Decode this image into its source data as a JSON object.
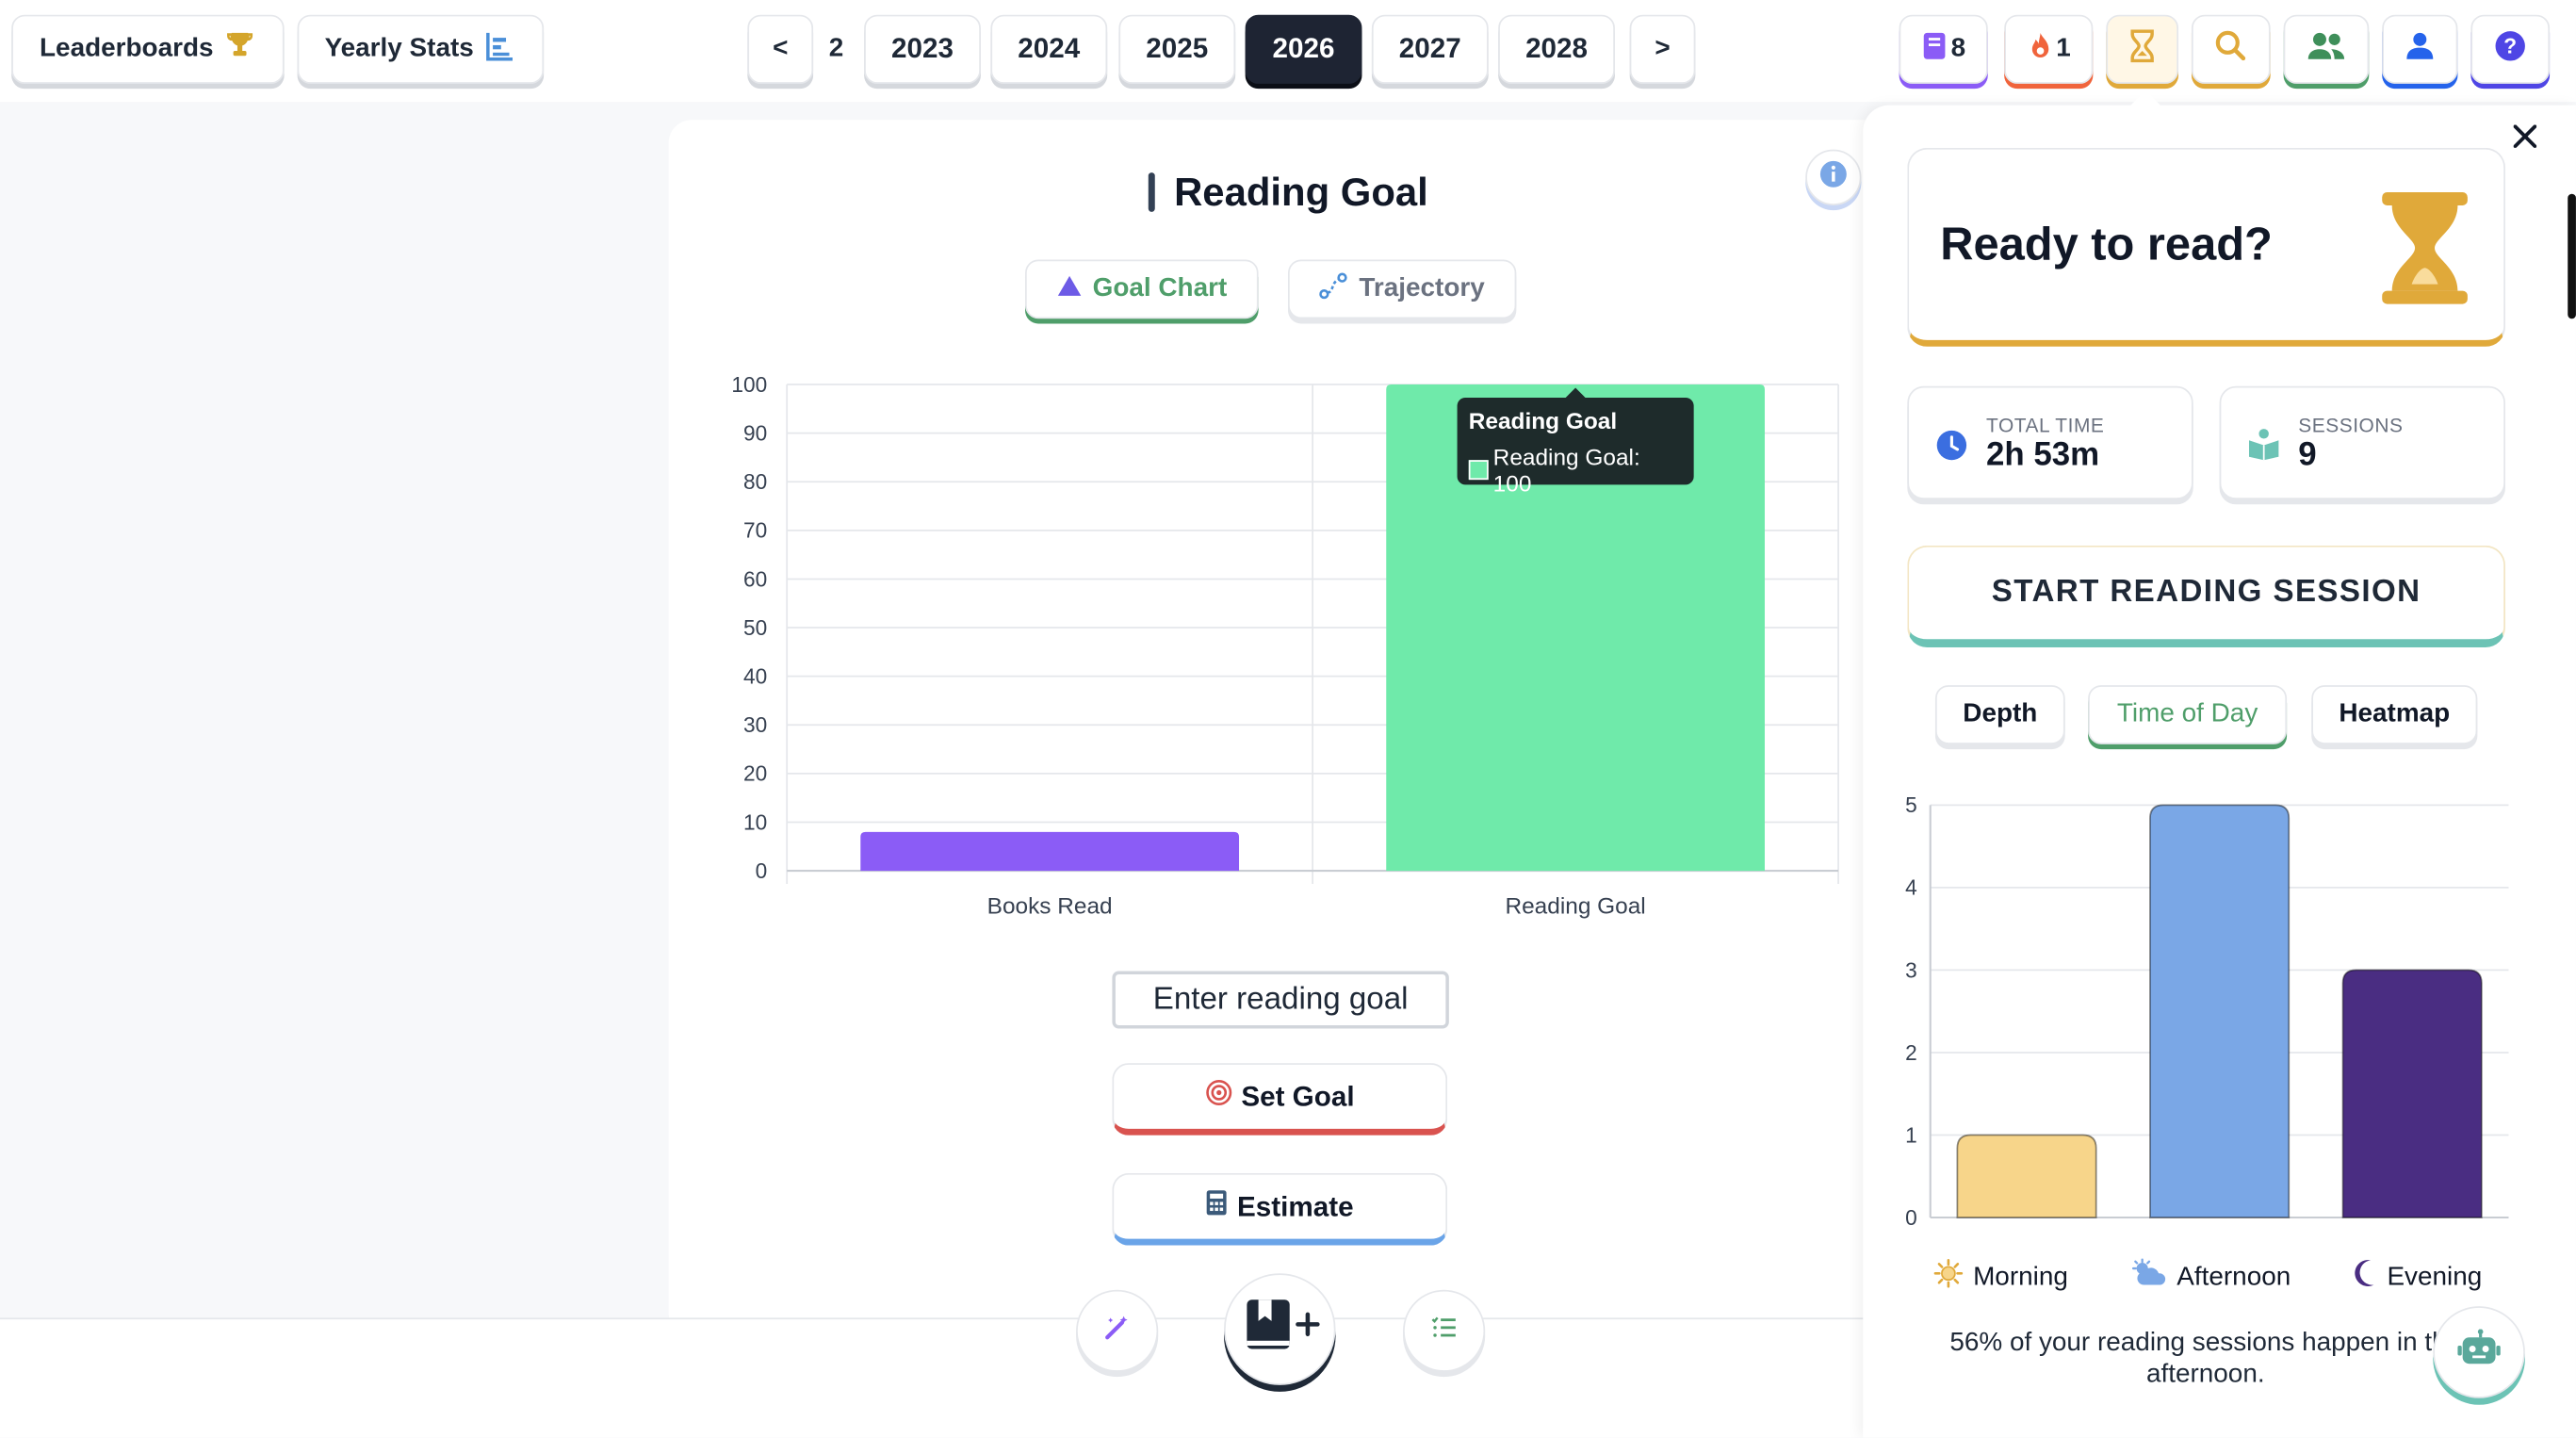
{
  "topbar": {
    "leaderboards_label": "Leaderboards",
    "yearly_stats_label": "Yearly Stats",
    "prev_label": "<",
    "next_label": ">",
    "partial_year": "2",
    "years": [
      "2023",
      "2024",
      "2025",
      "2026",
      "2027",
      "2028"
    ],
    "selected_year": "2026",
    "books_count": "8",
    "streak_count": "1"
  },
  "goal": {
    "title": "Reading Goal",
    "tab_goal_chart": "Goal Chart",
    "tab_trajectory": "Trajectory",
    "input_placeholder": "Enter reading goal",
    "set_goal_label": "Set Goal",
    "estimate_label": "Estimate",
    "tooltip_title": "Reading Goal",
    "tooltip_body": "Reading Goal: 100"
  },
  "chart_data": [
    {
      "type": "bar",
      "categories": [
        "Books Read",
        "Reading Goal"
      ],
      "values": [
        8,
        100
      ],
      "colors": [
        "#8b5cf6",
        "#6feaaa"
      ],
      "ylim": [
        0,
        100
      ],
      "yticks": [
        0,
        10,
        20,
        30,
        40,
        50,
        60,
        70,
        80,
        90,
        100
      ],
      "grid": true
    },
    {
      "type": "bar",
      "categories": [
        "Morning",
        "Afternoon",
        "Evening"
      ],
      "values": [
        1,
        5,
        3
      ],
      "colors": [
        "#f7d58a",
        "#7aa7e6",
        "#4a2d82"
      ],
      "ylim": [
        0,
        5
      ],
      "yticks": [
        0,
        1,
        2,
        3,
        4,
        5
      ],
      "grid": true
    }
  ],
  "side": {
    "ready_title": "Ready to read?",
    "total_time_label": "TOTAL TIME",
    "total_time_value": "2h 53m",
    "sessions_label": "SESSIONS",
    "sessions_value": "9",
    "start_label": "START READING SESSION",
    "tabs": [
      "Depth",
      "Time of Day",
      "Heatmap"
    ],
    "active_tab": "Time of Day",
    "legend": [
      "Morning",
      "Afternoon",
      "Evening"
    ],
    "insight": "56% of your reading sessions happen in the afternoon."
  },
  "colors": {
    "accent_green": "#4f9e6a",
    "accent_red": "#d9534f",
    "accent_blue": "#6aa4e8",
    "accent_gold": "#e0a93a"
  }
}
